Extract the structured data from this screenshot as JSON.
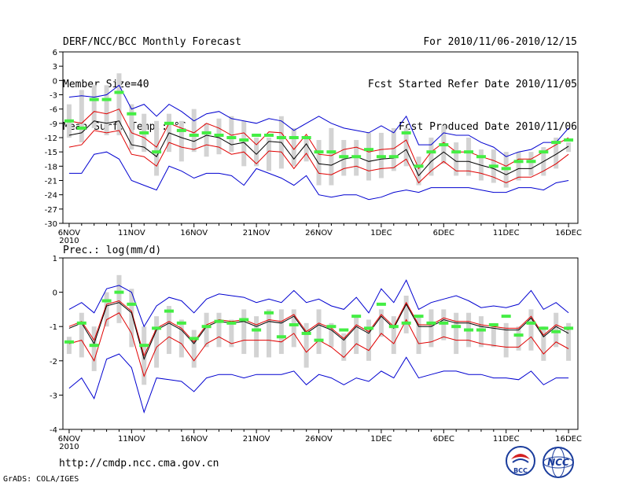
{
  "header": {
    "title": "DERF/NCC/BCC Monthly Forecast",
    "member_size": "Member Size=40",
    "variable": "Mean Surf. Temp.: °C",
    "period": "For 2010/11/06-2010/12/15",
    "started": "Fcst Started Refer Date 2010/11/05",
    "produced": "Fcst Produced Date 2010/11/06"
  },
  "footer": {
    "url": "http://cmdp.ncc.cma.gov.cn",
    "credit": "GrADS: COLA/IGES",
    "logo1_text": "BCC",
    "logo2_text": "NCC"
  },
  "colors": {
    "bar": "#d3d3d3",
    "ensemble_mean": "#000000",
    "spread_inner": "#e00000",
    "spread_outer": "#0000d0",
    "observed_marker": "#44ee44"
  },
  "chart_data": [
    {
      "type": "line",
      "title": "Mean Surf. Temp.: °C",
      "x_start_day": 1,
      "x_end_day": 41,
      "ylim": [
        -30,
        6
      ],
      "y_ticks": [
        6,
        3,
        0,
        -3,
        -6,
        -9,
        -12,
        -15,
        -18,
        -21,
        -24,
        -27,
        -30
      ],
      "x_ticks": [
        {
          "day": 1,
          "label": "6NOV",
          "sub": "2010"
        },
        {
          "day": 6,
          "label": "11NOV",
          "sub": ""
        },
        {
          "day": 11,
          "label": "16NOV",
          "sub": ""
        },
        {
          "day": 16,
          "label": "21NOV",
          "sub": ""
        },
        {
          "day": 21,
          "label": "26NOV",
          "sub": ""
        },
        {
          "day": 26,
          "label": "1DEC",
          "sub": ""
        },
        {
          "day": 31,
          "label": "6DEC",
          "sub": ""
        },
        {
          "day": 36,
          "label": "11DEC",
          "sub": ""
        },
        {
          "day": 41,
          "label": "16DEC",
          "sub": ""
        }
      ],
      "series": [
        {
          "name": "mean",
          "values": [
            -11.5,
            -11,
            -8.5,
            -9,
            -8.5,
            -13.5,
            -14,
            -16,
            -11,
            -12,
            -12.8,
            -11.5,
            -12,
            -13.5,
            -13,
            -15.5,
            -12.8,
            -13,
            -16.5,
            -13.3,
            -17.5,
            -17.8,
            -16.5,
            -16,
            -17,
            -16.5,
            -16.3,
            -14.5,
            -20,
            -17,
            -15,
            -17,
            -17,
            -17.8,
            -18.5,
            -19.8,
            -18.5,
            -18.5,
            -17,
            -15.5,
            -13.8
          ]
        },
        {
          "name": "upper_inner",
          "values": [
            -8.5,
            -9,
            -6.5,
            -7,
            -6,
            -11,
            -12,
            -14,
            -9,
            -10,
            -11,
            -9,
            -10,
            -11.5,
            -11,
            -13.5,
            -10.8,
            -11,
            -14.5,
            -11.3,
            -15.5,
            -15.8,
            -14.5,
            -14,
            -15,
            -14.5,
            -14.3,
            -12.5,
            -18.5,
            -15,
            -13,
            -15,
            -15,
            -16,
            -16.8,
            -18,
            -16.5,
            -16.5,
            -15,
            -13.5,
            -12
          ]
        },
        {
          "name": "lower_inner",
          "values": [
            -14,
            -13.5,
            -10.5,
            -11,
            -10.5,
            -15.5,
            -16,
            -18,
            -13,
            -14,
            -14.5,
            -13.5,
            -14,
            -15.5,
            -15,
            -17.5,
            -14.8,
            -15,
            -18.5,
            -15.3,
            -19.5,
            -19.8,
            -18.5,
            -18,
            -19,
            -18.5,
            -18.3,
            -16.5,
            -21.5,
            -19,
            -17,
            -19,
            -19,
            -19.5,
            -20.3,
            -21.5,
            -20.3,
            -20.3,
            -19,
            -17.5,
            -15.5
          ]
        },
        {
          "name": "upper_outer",
          "values": [
            -3.5,
            -3.2,
            -3.5,
            -3,
            -1,
            -6,
            -5,
            -7.5,
            -5,
            -6.5,
            -8.5,
            -7,
            -6.5,
            -8,
            -8.5,
            -9,
            -8,
            -8.5,
            -10.5,
            -9,
            -7.5,
            -9,
            -10,
            -10.5,
            -11,
            -9.5,
            -11,
            -7.5,
            -13.5,
            -13.5,
            -11,
            -11.5,
            -11.5,
            -13,
            -14,
            -16,
            -15,
            -14.5,
            -13,
            -13,
            -10
          ]
        },
        {
          "name": "lower_outer",
          "values": [
            -19.5,
            -19.5,
            -15.5,
            -15,
            -16.5,
            -21,
            -22,
            -23,
            -18,
            -19,
            -20.5,
            -19.5,
            -19.5,
            -20,
            -22,
            -18.5,
            -19.5,
            -20.5,
            -22,
            -20,
            -24,
            -24.5,
            -24,
            -24,
            -25,
            -24.5,
            -23.5,
            -23,
            -23.5,
            -22.5,
            -22.5,
            -22.5,
            -22.5,
            -23,
            -23.5,
            -23.5,
            -22.5,
            -22.5,
            -23,
            -21.5,
            -21
          ]
        },
        {
          "name": "bar_top",
          "values": [
            -5,
            -2,
            -1,
            -1,
            1.5,
            -5,
            -7,
            -8.5,
            -7,
            -8.5,
            -6,
            -9,
            -8,
            -7.5,
            -8.5,
            -12,
            -12,
            -7.5,
            -10,
            -12,
            -12.5,
            -10,
            -12.5,
            -12.5,
            -11,
            -11,
            -10,
            -10,
            -16,
            -12,
            -9.5,
            -13,
            -12,
            -14.5,
            -14.5,
            -15,
            -15,
            -15,
            -14,
            -12,
            -13
          ]
        },
        {
          "name": "bar_bottom",
          "values": [
            -12,
            -13,
            -10,
            -11.5,
            -11.5,
            -14.5,
            -15,
            -20,
            -15,
            -17,
            -15,
            -16,
            -15.5,
            -15,
            -18,
            -18,
            -19,
            -18.5,
            -18,
            -17,
            -22,
            -22,
            -20,
            -20,
            -21,
            -20.5,
            -19,
            -18,
            -22,
            -20,
            -17.5,
            -20,
            -20,
            -21,
            -21.5,
            -22.5,
            -21,
            -20,
            -20,
            -18.5,
            -15
          ]
        },
        {
          "name": "observed",
          "values": [
            -8.5,
            -10,
            -4,
            -4,
            -2.5,
            -7,
            -11,
            -15,
            -9,
            -10.5,
            -11.5,
            -11,
            -11.5,
            -12,
            -12.5,
            -11.5,
            -11.5,
            -12,
            -12,
            -12,
            -15,
            -15,
            -16,
            -16,
            -14.5,
            -16,
            -16,
            -11,
            -18,
            -15,
            -13.5,
            -15,
            -15,
            -16,
            -18,
            -18.5,
            -17,
            -17,
            -15,
            -13,
            -12.5
          ]
        }
      ]
    },
    {
      "type": "line",
      "title": "Prec.: log(mm/d)",
      "x_start_day": 1,
      "x_end_day": 41,
      "ylim": [
        -4,
        1
      ],
      "y_ticks": [
        1,
        0,
        -1,
        -2,
        -3,
        -4
      ],
      "x_ticks": [
        {
          "day": 1,
          "label": "6NOV",
          "sub": "2010"
        },
        {
          "day": 6,
          "label": "11NOV",
          "sub": ""
        },
        {
          "day": 11,
          "label": "16NOV",
          "sub": ""
        },
        {
          "day": 16,
          "label": "21NOV",
          "sub": ""
        },
        {
          "day": 21,
          "label": "26NOV",
          "sub": ""
        },
        {
          "day": 26,
          "label": "1DEC",
          "sub": ""
        },
        {
          "day": 31,
          "label": "6DEC",
          "sub": ""
        },
        {
          "day": 36,
          "label": "11DEC",
          "sub": ""
        },
        {
          "day": 41,
          "label": "16DEC",
          "sub": ""
        }
      ],
      "series": [
        {
          "name": "mean",
          "values": [
            -1.05,
            -0.9,
            -1.5,
            -0.4,
            -0.3,
            -0.6,
            -1.95,
            -1.1,
            -0.9,
            -1.1,
            -1.5,
            -1.0,
            -0.85,
            -0.9,
            -0.85,
            -1.0,
            -0.85,
            -0.9,
            -0.7,
            -1.2,
            -0.95,
            -1.1,
            -1.4,
            -1.0,
            -1.2,
            -0.7,
            -1.05,
            -0.35,
            -1.0,
            -1.0,
            -0.8,
            -0.9,
            -0.9,
            -1.0,
            -1.05,
            -1.1,
            -1.1,
            -0.75,
            -1.3,
            -1.0,
            -1.2
          ]
        },
        {
          "name": "upper_inner",
          "values": [
            -1.0,
            -0.85,
            -1.4,
            -0.35,
            -0.25,
            -0.55,
            -1.85,
            -1.05,
            -0.85,
            -1.05,
            -1.45,
            -0.95,
            -0.8,
            -0.85,
            -0.8,
            -0.95,
            -0.8,
            -0.85,
            -0.65,
            -1.15,
            -0.9,
            -1.05,
            -1.35,
            -0.95,
            -1.15,
            -0.65,
            -1.0,
            -0.3,
            -0.95,
            -0.95,
            -0.75,
            -0.85,
            -0.85,
            -0.95,
            -1.0,
            -1.05,
            -1.05,
            -0.7,
            -1.25,
            -0.95,
            -1.1
          ]
        },
        {
          "name": "lower_inner",
          "values": [
            -1.5,
            -1.4,
            -2.0,
            -0.8,
            -0.6,
            -1.2,
            -2.45,
            -1.6,
            -1.3,
            -1.5,
            -2.0,
            -1.5,
            -1.3,
            -1.5,
            -1.4,
            -1.4,
            -1.4,
            -1.45,
            -1.2,
            -1.75,
            -1.4,
            -1.6,
            -1.9,
            -1.5,
            -1.7,
            -1.2,
            -1.5,
            -0.8,
            -1.5,
            -1.45,
            -1.3,
            -1.4,
            -1.4,
            -1.5,
            -1.55,
            -1.6,
            -1.6,
            -1.3,
            -1.8,
            -1.45,
            -1.65
          ]
        },
        {
          "name": "upper_outer",
          "values": [
            -0.5,
            -0.3,
            -0.6,
            0.1,
            0.2,
            0.0,
            -1.0,
            -0.4,
            -0.15,
            -0.25,
            -0.6,
            -0.2,
            -0.05,
            -0.1,
            -0.15,
            -0.3,
            -0.2,
            -0.3,
            0.05,
            -0.3,
            -0.2,
            -0.4,
            -0.5,
            -0.15,
            -0.6,
            0.1,
            -0.3,
            0.35,
            -0.5,
            -0.3,
            -0.2,
            -0.1,
            -0.25,
            -0.45,
            -0.4,
            -0.45,
            -0.35,
            0.05,
            -0.5,
            -0.3,
            -0.6
          ]
        },
        {
          "name": "lower_outer",
          "values": [
            -2.8,
            -2.5,
            -3.1,
            -1.95,
            -1.8,
            -2.2,
            -3.5,
            -2.5,
            -2.55,
            -2.6,
            -2.9,
            -2.5,
            -2.4,
            -2.4,
            -2.5,
            -2.4,
            -2.4,
            -2.4,
            -2.3,
            -2.7,
            -2.4,
            -2.5,
            -2.7,
            -2.5,
            -2.6,
            -2.3,
            -2.5,
            -1.9,
            -2.5,
            -2.4,
            -2.3,
            -2.3,
            -2.4,
            -2.4,
            -2.5,
            -2.5,
            -2.55,
            -2.3,
            -2.7,
            -2.5,
            -2.5
          ]
        },
        {
          "name": "bar_top",
          "values": [
            -1.3,
            -0.6,
            -1.0,
            0.0,
            0.5,
            0.1,
            -1.0,
            -0.7,
            -0.4,
            -0.8,
            -1.1,
            -0.6,
            -0.6,
            -0.8,
            -0.5,
            -0.7,
            -0.5,
            -0.5,
            -0.5,
            -0.9,
            -0.5,
            -0.9,
            -1.2,
            -0.7,
            -0.8,
            -0.5,
            -0.7,
            -0.1,
            -0.7,
            -0.5,
            -0.5,
            -0.6,
            -0.6,
            -0.7,
            -0.9,
            -0.9,
            -1.0,
            -0.5,
            -1.0,
            -0.6,
            -0.9
          ]
        },
        {
          "name": "bar_bottom",
          "values": [
            -1.8,
            -1.9,
            -2.3,
            -1.0,
            -0.9,
            -1.6,
            -2.7,
            -2.2,
            -1.8,
            -1.9,
            -2.2,
            -1.6,
            -1.6,
            -1.6,
            -1.8,
            -1.9,
            -1.9,
            -1.8,
            -1.6,
            -2.2,
            -1.8,
            -1.6,
            -2.0,
            -1.8,
            -2.0,
            -1.3,
            -1.8,
            -1.2,
            -1.8,
            -1.6,
            -1.4,
            -1.8,
            -1.6,
            -1.6,
            -1.6,
            -1.9,
            -1.7,
            -1.7,
            -2.0,
            -1.6,
            -2.0
          ]
        },
        {
          "name": "observed",
          "values": [
            -1.45,
            -0.9,
            -1.55,
            -0.25,
            0.0,
            -0.35,
            -1.55,
            -1.05,
            -0.55,
            -0.9,
            -1.35,
            -1.0,
            -0.85,
            -0.9,
            -0.8,
            -1.1,
            -0.6,
            -1.3,
            -0.95,
            -1.2,
            -1.4,
            -1.0,
            -1.1,
            -0.7,
            -1.05,
            -0.35,
            -1.0,
            -0.9,
            -0.7,
            -0.9,
            -0.9,
            -1.0,
            -1.1,
            -1.1,
            -0.95,
            -0.7,
            -1.25,
            -0.9,
            -1.05,
            -1.15,
            -1.05
          ]
        }
      ]
    }
  ]
}
